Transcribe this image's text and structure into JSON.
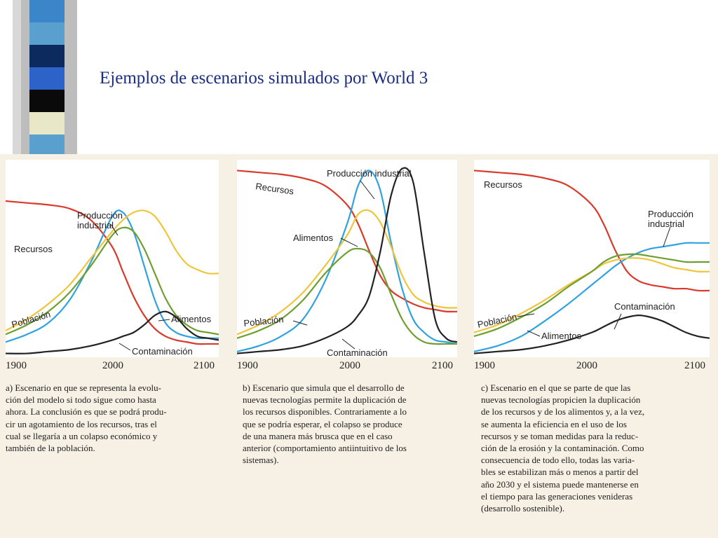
{
  "title": "Ejemplos de escenarios simulados por World 3",
  "colors": {
    "Recursos": "#d93a2b",
    "Producción industrial": "#2fa2e0",
    "Alimentos": "#efc53a",
    "Población": "#6f9e30",
    "Contaminación": "#222222",
    "title": "#1a2d80"
  },
  "sidebar_blocks": [
    "#3a86c8",
    "#5aa0cf",
    "#0d2a5e",
    "#2d62c8",
    "#0a0a0a",
    "#e8e8c8",
    "#5aa0cf"
  ],
  "chart_data": [
    {
      "type": "line",
      "x": [
        1900,
        1920,
        1940,
        1960,
        1980,
        2000,
        2010,
        2020,
        2030,
        2040,
        2050,
        2060,
        2070,
        2080,
        2090,
        2100
      ],
      "ylim": [
        0,
        1
      ],
      "x_ticks": [
        "1900",
        "2000",
        "2100"
      ],
      "series": [
        {
          "name": "Recursos",
          "values": [
            0.82,
            0.81,
            0.8,
            0.78,
            0.72,
            0.58,
            0.45,
            0.32,
            0.22,
            0.15,
            0.11,
            0.09,
            0.08,
            0.07,
            0.07,
            0.07
          ]
        },
        {
          "name": "Producción industrial",
          "values": [
            0.08,
            0.12,
            0.18,
            0.3,
            0.5,
            0.74,
            0.76,
            0.66,
            0.48,
            0.3,
            0.18,
            0.13,
            0.11,
            0.1,
            0.1,
            0.1
          ]
        },
        {
          "name": "Alimentos",
          "values": [
            0.14,
            0.2,
            0.28,
            0.38,
            0.52,
            0.66,
            0.72,
            0.76,
            0.77,
            0.74,
            0.66,
            0.56,
            0.49,
            0.46,
            0.44,
            0.44
          ]
        },
        {
          "name": "Población",
          "values": [
            0.12,
            0.17,
            0.24,
            0.34,
            0.48,
            0.64,
            0.68,
            0.66,
            0.57,
            0.44,
            0.31,
            0.22,
            0.17,
            0.14,
            0.13,
            0.12
          ]
        },
        {
          "name": "Contaminación",
          "values": [
            0.02,
            0.02,
            0.03,
            0.04,
            0.06,
            0.09,
            0.11,
            0.13,
            0.17,
            0.22,
            0.24,
            0.21,
            0.15,
            0.11,
            0.1,
            0.09
          ]
        }
      ],
      "labels": {
        "Producción industrial": "Producción\nindustrial",
        "Recursos": "Recursos",
        "Población": "Población",
        "Alimentos": "Alimentos",
        "Contaminación": "Contaminación"
      },
      "caption": "a) Escenario en que se representa la evolu-\nción del modelo si todo sigue como hasta\nahora. La conclusión es que se podrá produ-\ncir un agotamiento de los recursos, tras el\ncual se llegaría a un colapso económico y\ntambién de la población."
    },
    {
      "type": "line",
      "x": [
        1900,
        1920,
        1940,
        1960,
        1980,
        2000,
        2010,
        2020,
        2030,
        2040,
        2050,
        2060,
        2070,
        2080,
        2090,
        2100
      ],
      "ylim": [
        0,
        1
      ],
      "x_ticks": [
        "1900",
        "2000",
        "2100"
      ],
      "series": [
        {
          "name": "Recursos",
          "values": [
            0.98,
            0.97,
            0.96,
            0.94,
            0.9,
            0.8,
            0.7,
            0.56,
            0.43,
            0.35,
            0.31,
            0.28,
            0.26,
            0.25,
            0.24,
            0.24
          ]
        },
        {
          "name": "Producción industrial",
          "values": [
            0.03,
            0.06,
            0.11,
            0.2,
            0.4,
            0.7,
            0.9,
            0.98,
            0.88,
            0.6,
            0.36,
            0.2,
            0.13,
            0.09,
            0.08,
            0.07
          ]
        },
        {
          "name": "Alimentos",
          "values": [
            0.12,
            0.17,
            0.24,
            0.34,
            0.48,
            0.64,
            0.75,
            0.77,
            0.71,
            0.58,
            0.43,
            0.33,
            0.29,
            0.27,
            0.26,
            0.26
          ]
        },
        {
          "name": "Población",
          "values": [
            0.1,
            0.14,
            0.2,
            0.3,
            0.44,
            0.55,
            0.57,
            0.55,
            0.47,
            0.33,
            0.2,
            0.12,
            0.08,
            0.07,
            0.07,
            0.07
          ]
        },
        {
          "name": "Contaminación",
          "values": [
            0.02,
            0.03,
            0.04,
            0.06,
            0.1,
            0.16,
            0.22,
            0.32,
            0.55,
            0.85,
            0.99,
            0.92,
            0.55,
            0.2,
            0.1,
            0.08
          ]
        }
      ],
      "labels": {
        "Producción industrial": "Producción industrial",
        "Recursos": "Recursos",
        "Población": "Población",
        "Alimentos": "Alimentos",
        "Contaminación": "Contaminación"
      },
      "caption": "b) Escenario que simula que el desarrollo de\nnuevas tecnologías permite la duplicación de\nlos recursos disponibles. Contrariamente a lo\nque se podría esperar, el colapso se produce\nde una manera más brusca que en el caso\nanterior (comportamiento antiintuitivo de los\nsistemas)."
    },
    {
      "type": "line",
      "x": [
        1900,
        1920,
        1940,
        1960,
        1980,
        2000,
        2010,
        2020,
        2030,
        2040,
        2050,
        2060,
        2070,
        2080,
        2090,
        2100
      ],
      "ylim": [
        0,
        1
      ],
      "x_ticks": [
        "1900",
        "2000",
        "2100"
      ],
      "series": [
        {
          "name": "Recursos",
          "values": [
            0.98,
            0.97,
            0.96,
            0.94,
            0.9,
            0.8,
            0.7,
            0.56,
            0.45,
            0.4,
            0.38,
            0.37,
            0.36,
            0.36,
            0.35,
            0.35
          ]
        },
        {
          "name": "Producción industrial",
          "values": [
            0.03,
            0.06,
            0.11,
            0.19,
            0.28,
            0.38,
            0.43,
            0.48,
            0.52,
            0.55,
            0.57,
            0.58,
            0.59,
            0.6,
            0.6,
            0.6
          ]
        },
        {
          "name": "Alimentos",
          "values": [
            0.13,
            0.17,
            0.23,
            0.3,
            0.38,
            0.45,
            0.49,
            0.51,
            0.52,
            0.52,
            0.51,
            0.49,
            0.47,
            0.46,
            0.45,
            0.45
          ]
        },
        {
          "name": "Población",
          "values": [
            0.11,
            0.15,
            0.21,
            0.28,
            0.37,
            0.45,
            0.5,
            0.53,
            0.54,
            0.54,
            0.53,
            0.52,
            0.51,
            0.5,
            0.5,
            0.5
          ]
        },
        {
          "name": "Contaminación",
          "values": [
            0.02,
            0.03,
            0.04,
            0.06,
            0.09,
            0.13,
            0.16,
            0.19,
            0.21,
            0.22,
            0.21,
            0.19,
            0.16,
            0.13,
            0.11,
            0.1
          ]
        }
      ],
      "labels": {
        "Producción industrial": "Producción\nindustrial",
        "Recursos": "Recursos",
        "Población": "Población",
        "Alimentos": "Alimentos",
        "Contaminación": "Contaminación"
      },
      "caption": "c) Escenario en el que se parte de que las\nnuevas tecnologías propicien la duplicación\nde los recursos y de los alimentos y, a la vez,\nse aumenta la eficiencia en el uso de los\nrecursos y se toman medidas para la reduc-\nción de la erosión y la contaminación. Como\nconsecuencia de todo ello, todas las varia-\nbles se estabilizan más o menos a partir del\naño 2030 y el sistema puede mantenerse en\nel tiempo para las generaciones venideras\n(desarrollo sostenible)."
    }
  ]
}
